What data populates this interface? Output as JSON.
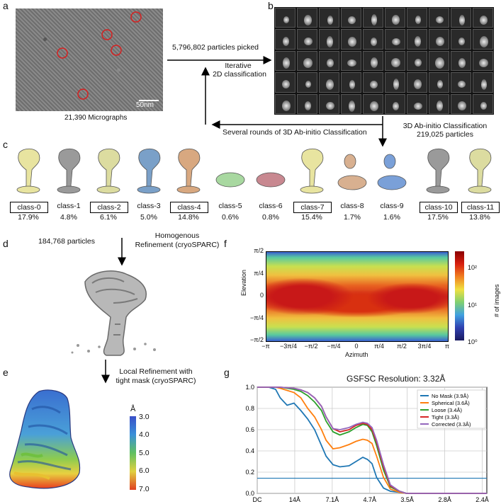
{
  "panel_labels": {
    "a": "a",
    "b": "b",
    "c": "c",
    "d": "d",
    "e": "e",
    "f": "f",
    "g": "g"
  },
  "panel_a": {
    "caption": "21,390 Micrographs",
    "scale_bar": "50nm"
  },
  "arrows": {
    "picked": "5,796,802 particles picked",
    "iterative_line1": "Iterative",
    "iterative_line2": "2D classification",
    "abinitio_rounds": "Several rounds of 3D Ab-initio Classification",
    "abinitio_line1": "3D Ab-initio Classification",
    "abinitio_line2": "219,025 particles",
    "d_particles": "184,768 particles",
    "d_refine_line1": "Homogenous",
    "d_refine_line2": "Refinement (cryoSPARC)",
    "e_refine_line1": "Local Refinement with",
    "e_refine_line2": "tight mask (cryoSPARC)"
  },
  "classes": [
    {
      "name": "class-0",
      "pct": "17.9%",
      "boxed": true,
      "color": "#e8e4a0"
    },
    {
      "name": "class-1",
      "pct": "4.8%",
      "boxed": false,
      "color": "#9a9a9a"
    },
    {
      "name": "class-2",
      "pct": "6.1%",
      "boxed": true,
      "color": "#dcdca0"
    },
    {
      "name": "class-3",
      "pct": "5.0%",
      "boxed": false,
      "color": "#7aa0c8"
    },
    {
      "name": "class-4",
      "pct": "14.8%",
      "boxed": true,
      "color": "#d8a880"
    },
    {
      "name": "class-5",
      "pct": "0.6%",
      "boxed": false,
      "color": "#a8d8a0"
    },
    {
      "name": "class-6",
      "pct": "0.8%",
      "boxed": false,
      "color": "#c88890"
    },
    {
      "name": "class-7",
      "pct": "15.4%",
      "boxed": true,
      "color": "#e8e4a0"
    },
    {
      "name": "class-8",
      "pct": "1.7%",
      "boxed": false,
      "color": "#d8b090"
    },
    {
      "name": "class-9",
      "pct": "1.6%",
      "boxed": false,
      "color": "#7aa0d8"
    },
    {
      "name": "class-10",
      "pct": "17.5%",
      "boxed": true,
      "color": "#9a9a9a"
    },
    {
      "name": "class-11",
      "pct": "13.8%",
      "boxed": true,
      "color": "#dcdca0"
    }
  ],
  "panel_e": {
    "unit": "Å",
    "ticks": [
      "3.0",
      "4.0",
      "5.0",
      "6.0",
      "7.0"
    ]
  },
  "panel_f": {
    "ylabel": "Elevation",
    "xlabel": "Azimuth",
    "cbar_label": "# of images",
    "xticks": [
      "−π",
      "−3π/4",
      "−π/2",
      "−π/4",
      "0",
      "π/4",
      "π/2",
      "3π/4",
      "π"
    ],
    "yticks": [
      "π/2",
      "π/4",
      "0",
      "−π/4",
      "−π/2"
    ],
    "cbar_ticks": [
      "10²",
      "10¹",
      "10⁰"
    ]
  },
  "chart_data": {
    "type": "line",
    "title": "GSFSC Resolution: 3.32Å",
    "x_ticks": [
      "DC",
      "14Å",
      "7.1Å",
      "4.7Å",
      "3.5Å",
      "2.8Å",
      "2.4Å"
    ],
    "y_ticks": [
      "0.0",
      "0.2",
      "0.4",
      "0.6",
      "0.8",
      "1.0"
    ],
    "ylim": [
      0,
      1
    ],
    "threshold": 0.143,
    "series": [
      {
        "name": "No Mask (3.9Å)",
        "color": "#1f77b4",
        "x": [
          0,
          0.05,
          0.08,
          0.1,
          0.13,
          0.16,
          0.19,
          0.22,
          0.25,
          0.28,
          0.3,
          0.33,
          0.36,
          0.4,
          0.43,
          0.46,
          0.48,
          0.5,
          0.52,
          0.55,
          0.58,
          0.62,
          0.65,
          1
        ],
        "y": [
          1,
          1,
          0.98,
          0.9,
          0.83,
          0.85,
          0.78,
          0.7,
          0.6,
          0.45,
          0.35,
          0.27,
          0.25,
          0.26,
          0.3,
          0.34,
          0.32,
          0.28,
          0.15,
          0.05,
          0.02,
          0.01,
          0.0,
          0.0
        ]
      },
      {
        "name": "Spherical (3.6Å)",
        "color": "#ff7f0e",
        "x": [
          0,
          0.05,
          0.08,
          0.1,
          0.13,
          0.16,
          0.19,
          0.22,
          0.25,
          0.28,
          0.3,
          0.33,
          0.36,
          0.4,
          0.43,
          0.46,
          0.48,
          0.5,
          0.52,
          0.55,
          0.58,
          0.62,
          0.65,
          1
        ],
        "y": [
          1,
          1,
          1,
          0.99,
          0.97,
          0.95,
          0.9,
          0.8,
          0.72,
          0.6,
          0.5,
          0.42,
          0.43,
          0.46,
          0.49,
          0.51,
          0.5,
          0.47,
          0.35,
          0.15,
          0.04,
          0.01,
          0.0,
          0.0
        ]
      },
      {
        "name": "Loose (3.4Å)",
        "color": "#2ca02c",
        "x": [
          0,
          0.05,
          0.08,
          0.1,
          0.13,
          0.16,
          0.19,
          0.22,
          0.25,
          0.28,
          0.3,
          0.33,
          0.36,
          0.4,
          0.43,
          0.46,
          0.48,
          0.5,
          0.52,
          0.55,
          0.58,
          0.62,
          0.65,
          1
        ],
        "y": [
          1,
          1,
          1,
          1,
          0.99,
          0.98,
          0.96,
          0.92,
          0.86,
          0.78,
          0.68,
          0.58,
          0.55,
          0.58,
          0.62,
          0.65,
          0.64,
          0.58,
          0.45,
          0.22,
          0.06,
          0.02,
          0.0,
          0.0
        ]
      },
      {
        "name": "Tight (3.3Å)",
        "color": "#d62728",
        "x": [
          0,
          0.05,
          0.08,
          0.1,
          0.13,
          0.16,
          0.19,
          0.22,
          0.25,
          0.28,
          0.3,
          0.33,
          0.36,
          0.4,
          0.43,
          0.46,
          0.48,
          0.5,
          0.52,
          0.55,
          0.58,
          0.62,
          0.65,
          1
        ],
        "y": [
          1,
          1,
          1,
          1,
          0.995,
          0.99,
          0.975,
          0.95,
          0.9,
          0.82,
          0.72,
          0.61,
          0.58,
          0.6,
          0.64,
          0.66,
          0.65,
          0.6,
          0.48,
          0.25,
          0.07,
          0.02,
          0.0,
          0.0
        ]
      },
      {
        "name": "Corrected (3.3Å)",
        "color": "#9467bd",
        "x": [
          0,
          0.05,
          0.08,
          0.1,
          0.13,
          0.16,
          0.19,
          0.22,
          0.25,
          0.28,
          0.3,
          0.33,
          0.36,
          0.4,
          0.43,
          0.46,
          0.48,
          0.5,
          0.52,
          0.55,
          0.58,
          0.62,
          0.65,
          1
        ],
        "y": [
          1,
          1,
          1,
          1,
          0.995,
          0.99,
          0.975,
          0.95,
          0.9,
          0.82,
          0.72,
          0.61,
          0.6,
          0.62,
          0.65,
          0.67,
          0.66,
          0.62,
          0.5,
          0.27,
          0.08,
          0.02,
          0.0,
          0.0
        ]
      }
    ]
  }
}
